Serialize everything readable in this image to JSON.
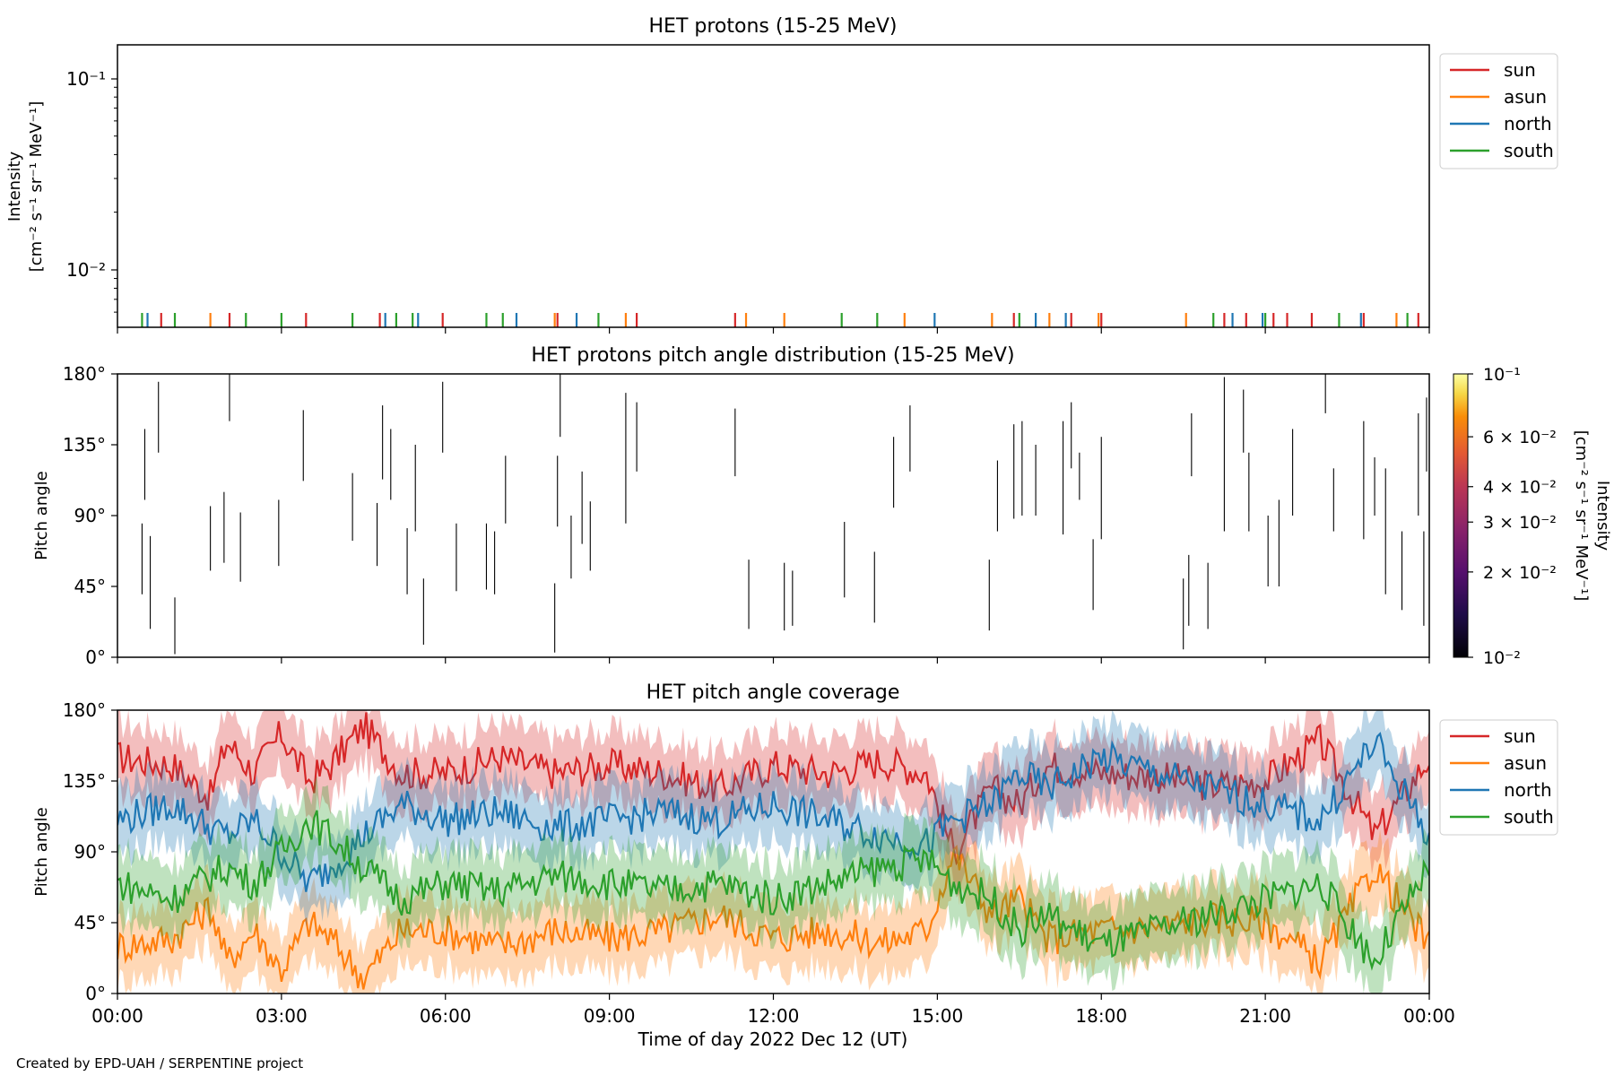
{
  "figure": {
    "xlabel": "Time of day 2022 Dec 12 (UT)",
    "x_ticks": [
      "00:00",
      "03:00",
      "06:00",
      "09:00",
      "12:00",
      "15:00",
      "18:00",
      "21:00",
      "00:00"
    ],
    "credit": "Created by EPD-UAH / SERPENTINE project"
  },
  "colors": {
    "sun": "#d62728",
    "asun": "#ff7f0e",
    "north": "#1f77b4",
    "south": "#2ca02c"
  },
  "chart_data": [
    {
      "type": "line",
      "title": "HET protons (15-25 MeV)",
      "ylabel": "Intensity",
      "ylabel_units": "[cm⁻² s⁻¹ sr⁻¹ MeV⁻¹]",
      "yscale": "log",
      "ylim": [
        0.005,
        0.15
      ],
      "y_ticks": [
        "10⁻¹",
        "10⁻²"
      ],
      "xlim_hours": [
        0,
        24
      ],
      "legend": "upper-right-outside",
      "series": [
        {
          "name": "sun",
          "color_key": "sun",
          "spike_hours": [
            0.8,
            2.05,
            3.45,
            4.8,
            5.95,
            8.05,
            9.5,
            11.3,
            16.4,
            17.45,
            18.0,
            20.25,
            20.65,
            21.15,
            21.4,
            21.85,
            22.8,
            23.8
          ]
        },
        {
          "name": "asun",
          "color_key": "asun",
          "spike_hours": [
            1.7,
            8.0,
            9.3,
            11.5,
            12.2,
            14.4,
            16.0,
            17.05,
            17.95,
            19.55,
            23.4
          ]
        },
        {
          "name": "north",
          "color_key": "north",
          "spike_hours": [
            0.55,
            4.9,
            5.5,
            7.3,
            8.4,
            14.95,
            16.8,
            17.35,
            20.4,
            20.95,
            22.75
          ]
        },
        {
          "name": "south",
          "color_key": "south",
          "spike_hours": [
            0.45,
            1.05,
            2.35,
            3.0,
            4.3,
            5.1,
            5.4,
            6.75,
            7.05,
            8.8,
            13.25,
            13.9,
            16.5,
            20.05,
            21.0,
            22.35,
            23.6
          ]
        }
      ]
    },
    {
      "type": "heatmap",
      "title": "HET protons pitch angle distribution (15-25 MeV)",
      "ylabel": "Pitch angle",
      "ylim": [
        0,
        180
      ],
      "y_ticks": [
        "0°",
        "45°",
        "90°",
        "135°",
        "180°"
      ],
      "colorbar": {
        "label": "Intensity",
        "units": "[cm⁻² s⁻¹ sr⁻¹ MeV⁻¹]",
        "scale": "log",
        "range": [
          0.01,
          0.1
        ],
        "colormap": "inferno",
        "ticks": [
          {
            "value": 0.1,
            "label": "10⁻¹"
          },
          {
            "value": 0.06,
            "label": "6 × 10⁻²"
          },
          {
            "value": 0.04,
            "label": "4 × 10⁻²"
          },
          {
            "value": 0.03,
            "label": "3 × 10⁻²"
          },
          {
            "value": 0.02,
            "label": "2 × 10⁻²"
          },
          {
            "value": 0.01,
            "label": "10⁻²"
          }
        ]
      },
      "segments_hours_deg": [
        [
          0.45,
          40,
          85
        ],
        [
          0.5,
          100,
          145
        ],
        [
          0.6,
          18,
          77
        ],
        [
          0.75,
          130,
          175
        ],
        [
          1.05,
          2,
          38
        ],
        [
          1.7,
          55,
          96
        ],
        [
          1.95,
          60,
          105
        ],
        [
          2.05,
          150,
          180
        ],
        [
          2.25,
          48,
          92
        ],
        [
          2.95,
          58,
          100
        ],
        [
          3.4,
          112,
          157
        ],
        [
          4.3,
          74,
          117
        ],
        [
          4.75,
          58,
          98
        ],
        [
          4.85,
          113,
          160
        ],
        [
          5.0,
          100,
          145
        ],
        [
          5.3,
          40,
          82
        ],
        [
          5.45,
          80,
          135
        ],
        [
          5.6,
          8,
          50
        ],
        [
          5.95,
          130,
          175
        ],
        [
          6.2,
          42,
          85
        ],
        [
          6.75,
          43,
          85
        ],
        [
          6.9,
          40,
          80
        ],
        [
          7.1,
          85,
          128
        ],
        [
          8.0,
          3,
          47
        ],
        [
          8.05,
          83,
          128
        ],
        [
          8.1,
          140,
          180
        ],
        [
          8.3,
          50,
          90
        ],
        [
          8.5,
          72,
          118
        ],
        [
          8.65,
          55,
          99
        ],
        [
          9.3,
          85,
          168
        ],
        [
          9.5,
          118,
          162
        ],
        [
          11.3,
          115,
          158
        ],
        [
          11.55,
          18,
          62
        ],
        [
          12.2,
          17,
          60
        ],
        [
          12.35,
          20,
          55
        ],
        [
          13.3,
          38,
          86
        ],
        [
          13.85,
          22,
          67
        ],
        [
          14.2,
          95,
          140
        ],
        [
          14.5,
          118,
          160
        ],
        [
          15.95,
          17,
          62
        ],
        [
          16.1,
          80,
          125
        ],
        [
          16.4,
          88,
          148
        ],
        [
          16.55,
          90,
          150
        ],
        [
          16.8,
          90,
          135
        ],
        [
          17.3,
          78,
          150
        ],
        [
          17.45,
          120,
          162
        ],
        [
          17.6,
          100,
          130
        ],
        [
          17.85,
          30,
          75
        ],
        [
          18.0,
          75,
          140
        ],
        [
          19.5,
          5,
          50
        ],
        [
          19.6,
          20,
          65
        ],
        [
          19.65,
          115,
          155
        ],
        [
          19.95,
          18,
          60
        ],
        [
          20.25,
          80,
          178
        ],
        [
          20.6,
          130,
          170
        ],
        [
          20.7,
          80,
          130
        ],
        [
          21.05,
          45,
          90
        ],
        [
          21.25,
          45,
          100
        ],
        [
          21.5,
          90,
          145
        ],
        [
          22.1,
          155,
          180
        ],
        [
          22.25,
          80,
          120
        ],
        [
          22.8,
          75,
          150
        ],
        [
          23.0,
          90,
          127
        ],
        [
          23.2,
          40,
          120
        ],
        [
          23.5,
          30,
          80
        ],
        [
          23.8,
          90,
          155
        ],
        [
          23.9,
          20,
          80
        ],
        [
          23.95,
          118,
          165
        ]
      ]
    },
    {
      "type": "area",
      "title": "HET pitch angle coverage",
      "ylabel": "Pitch angle",
      "ylim": [
        0,
        180
      ],
      "y_ticks": [
        "0°",
        "45°",
        "90°",
        "135°",
        "180°"
      ],
      "legend": "upper-right-outside",
      "series": [
        {
          "name": "sun",
          "color_key": "sun",
          "x_hours": [
            0,
            1,
            1.7,
            2.0,
            2.5,
            3.0,
            3.5,
            3.9,
            4.5,
            5.2,
            6,
            7,
            8,
            9,
            10,
            11,
            12,
            13,
            14,
            14.8,
            15.3,
            16,
            16.5,
            17,
            18,
            19,
            20,
            21,
            22,
            23,
            24
          ],
          "values": [
            150,
            145,
            125,
            160,
            140,
            165,
            135,
            145,
            170,
            140,
            140,
            150,
            140,
            145,
            140,
            130,
            145,
            140,
            148,
            140,
            90,
            130,
            120,
            145,
            140,
            138,
            132,
            135,
            160,
            100,
            150
          ]
        },
        {
          "name": "asun",
          "color_key": "asun",
          "x_hours": [
            0,
            1,
            1.7,
            2.0,
            2.5,
            3.0,
            3.5,
            3.9,
            4.5,
            5.2,
            6,
            7,
            8,
            9,
            10,
            11,
            12,
            13,
            14,
            14.8,
            15.3,
            16,
            16.5,
            17,
            18,
            19,
            20,
            21,
            22,
            23,
            24
          ],
          "values": [
            30,
            35,
            55,
            20,
            40,
            15,
            45,
            35,
            10,
            40,
            40,
            30,
            40,
            35,
            40,
            50,
            35,
            40,
            32,
            40,
            90,
            50,
            60,
            35,
            40,
            42,
            48,
            45,
            20,
            80,
            30
          ]
        },
        {
          "name": "north",
          "color_key": "north",
          "x_hours": [
            0,
            1,
            1.7,
            2.0,
            2.5,
            3.0,
            3.5,
            3.9,
            4.5,
            5.2,
            6,
            7,
            8,
            9,
            10,
            11,
            12,
            13,
            14,
            14.8,
            15.3,
            16,
            16.5,
            17,
            18,
            19,
            20,
            21,
            22,
            23,
            24
          ],
          "values": [
            110,
            120,
            105,
            100,
            110,
            90,
            70,
            80,
            100,
            120,
            110,
            115,
            105,
            110,
            115,
            110,
            120,
            110,
            100,
            95,
            110,
            120,
            140,
            130,
            150,
            140,
            130,
            120,
            110,
            160,
            100
          ]
        },
        {
          "name": "south",
          "color_key": "south",
          "x_hours": [
            0,
            1,
            1.7,
            2.0,
            2.5,
            3.0,
            3.5,
            3.9,
            4.5,
            5.2,
            6,
            7,
            8,
            9,
            10,
            11,
            12,
            13,
            14,
            14.8,
            15.3,
            16,
            16.5,
            17,
            18,
            19,
            20,
            21,
            22,
            23,
            24
          ],
          "values": [
            70,
            60,
            75,
            80,
            70,
            90,
            110,
            100,
            80,
            60,
            70,
            65,
            75,
            70,
            65,
            70,
            60,
            70,
            80,
            85,
            70,
            60,
            40,
            50,
            30,
            40,
            50,
            60,
            70,
            20,
            80
          ]
        }
      ]
    }
  ]
}
